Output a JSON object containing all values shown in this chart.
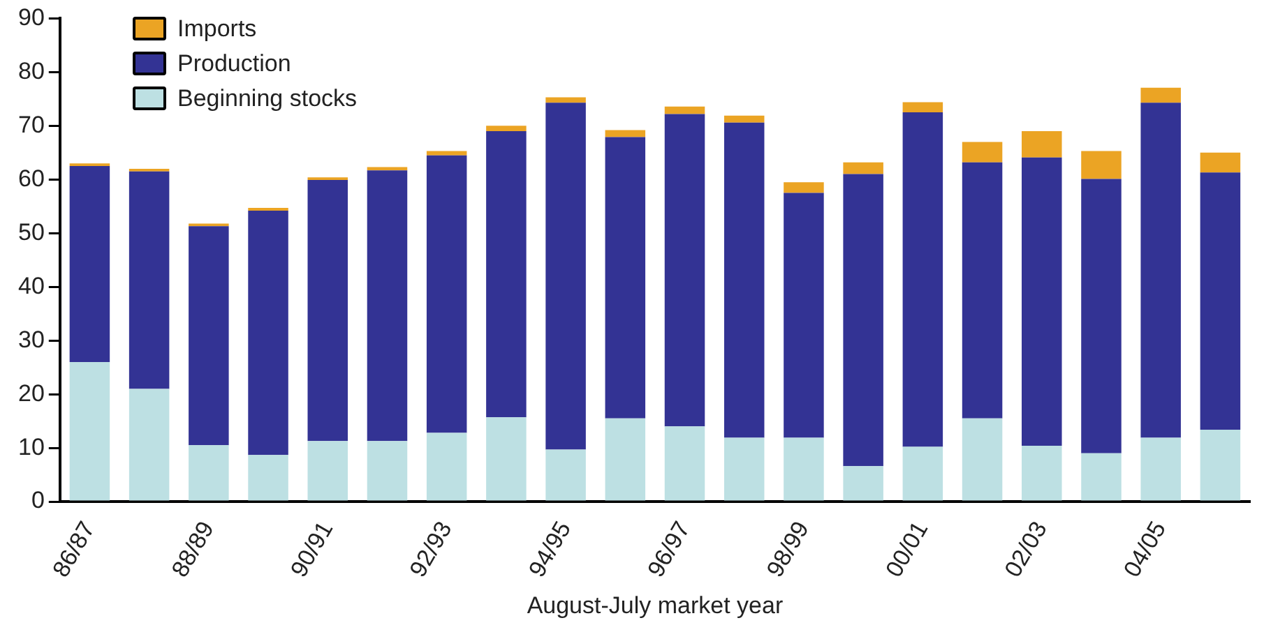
{
  "chart_data": {
    "type": "bar",
    "stacked": true,
    "xlabel": "August-July market year",
    "categories": [
      "86/87",
      null,
      "88/89",
      null,
      "90/91",
      null,
      "92/93",
      null,
      "94/95",
      null,
      "96/97",
      null,
      "98/99",
      null,
      "00/01",
      null,
      "02/03",
      null,
      "04/05",
      null
    ],
    "series": [
      {
        "name": "Beginning stocks",
        "color": "#bde0e3",
        "values": [
          26,
          21,
          10.5,
          8.7,
          11.3,
          11.3,
          12.8,
          15.7,
          9.7,
          15.5,
          14,
          11.9,
          11.9,
          6.6,
          10.2,
          15.5,
          10.4,
          9,
          11.9,
          13.4
        ]
      },
      {
        "name": "Production",
        "color": "#333394",
        "values": [
          36.5,
          40.5,
          40.8,
          45.5,
          48.6,
          50.4,
          51.7,
          53.3,
          64.6,
          52.4,
          58.2,
          58.7,
          45.6,
          54.4,
          62.3,
          47.7,
          53.7,
          51.1,
          62.4,
          47.9
        ]
      },
      {
        "name": "Imports",
        "color": "#eba424",
        "values": [
          0.5,
          0.5,
          0.5,
          0.5,
          0.5,
          0.6,
          0.8,
          1,
          1,
          1.3,
          1.4,
          1.3,
          2,
          2.2,
          1.9,
          3.8,
          4.9,
          5.2,
          2.8,
          3.7
        ]
      }
    ],
    "ylim": [
      0,
      90
    ],
    "yticks": [
      0,
      10,
      20,
      30,
      40,
      50,
      60,
      70,
      80,
      90
    ],
    "grid": false,
    "legend": "top left"
  }
}
